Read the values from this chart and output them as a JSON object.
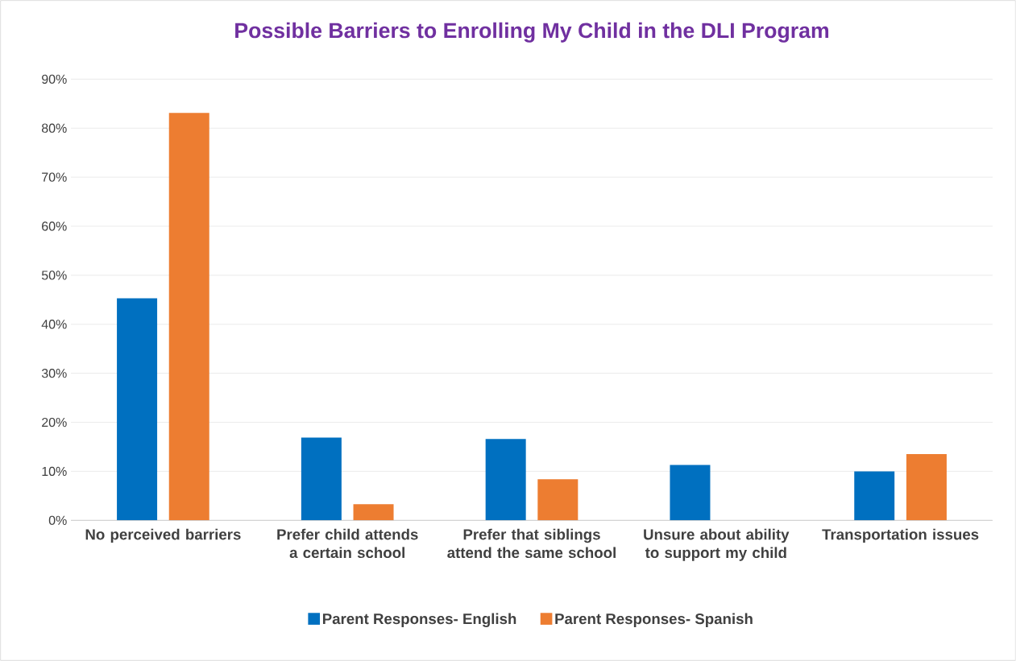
{
  "chart_data": {
    "type": "bar",
    "title": "Possible Barriers to Enrolling My Child in the DLI Program",
    "categories": [
      "No perceived barriers",
      "Prefer child attends a certain school",
      "Prefer that siblings attend the same school",
      "Unsure about ability to support my child",
      "Transportation issues"
    ],
    "series": [
      {
        "name": "Parent Responses- English",
        "color": "#0070c0",
        "values": [
          45.3,
          16.9,
          16.6,
          11.3,
          10.0
        ]
      },
      {
        "name": "Parent Responses- Spanish",
        "color": "#ed7d31",
        "values": [
          83.1,
          3.3,
          8.4,
          0,
          13.5
        ]
      }
    ],
    "ylim": [
      0,
      90
    ],
    "yticks": [
      {
        "value": 0,
        "label": "0%"
      },
      {
        "value": 10,
        "label": "10%"
      },
      {
        "value": 20,
        "label": "20%"
      },
      {
        "value": 30,
        "label": "30%"
      },
      {
        "value": 40,
        "label": "40%"
      },
      {
        "value": 50,
        "label": "50%"
      },
      {
        "value": 60,
        "label": "60%"
      },
      {
        "value": 70,
        "label": "70%"
      },
      {
        "value": 80,
        "label": "80%"
      },
      {
        "value": 90,
        "label": "90%"
      }
    ],
    "grid": "y",
    "legend": "bottom"
  }
}
